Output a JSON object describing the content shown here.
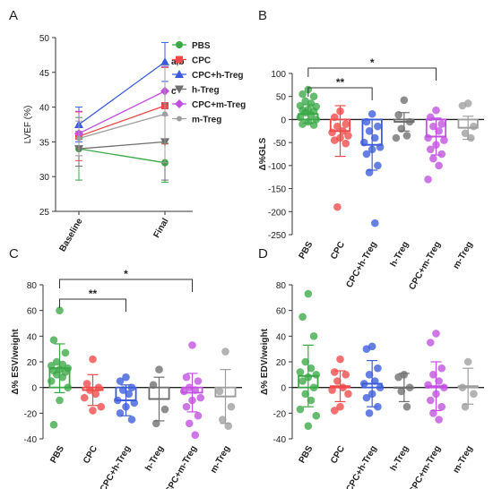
{
  "colors": {
    "PBS": "#3aa845",
    "CPC": "#f04848",
    "CPC+h-Treg": "#3b5bdb",
    "h-Treg": "#6e6e6e",
    "CPC+m-Treg": "#c14fe0",
    "m-Treg": "#9e9e9e"
  },
  "panels": {
    "A": {
      "letter": "A"
    },
    "B": {
      "letter": "B"
    },
    "C": {
      "letter": "C"
    },
    "D": {
      "letter": "D"
    }
  },
  "chart_data": [
    {
      "panel": "A",
      "type": "line",
      "categories": [
        "Baseline",
        "Final"
      ],
      "ylabel": "LVEF (%)",
      "ylim": [
        25,
        50
      ],
      "yticks": [
        25,
        30,
        35,
        40,
        45,
        50
      ],
      "legend_position": "top-right",
      "series": [
        {
          "name": "PBS",
          "values": [
            34.0,
            32.0
          ],
          "err": [
            4.5,
            2.8
          ],
          "marker": "circle"
        },
        {
          "name": "CPC",
          "values": [
            35.8,
            40.2
          ],
          "err": [
            3.5,
            5.5
          ],
          "marker": "square"
        },
        {
          "name": "CPC+h-Treg",
          "values": [
            37.5,
            46.5
          ],
          "err": [
            2.5,
            2.8
          ],
          "marker": "triangle-up"
        },
        {
          "name": "h-Treg",
          "values": [
            34.0,
            35.0
          ],
          "err": [
            2.5,
            5.5
          ],
          "marker": "triangle-down"
        },
        {
          "name": "CPC+m-Treg",
          "values": [
            36.2,
            42.3
          ],
          "err": [
            3.2,
            3.5
          ],
          "marker": "diamond"
        },
        {
          "name": "m-Treg",
          "values": [
            35.5,
            39.0
          ],
          "err": [
            2.5,
            7.0
          ],
          "marker": "circle-small"
        }
      ],
      "annotations": [
        {
          "text": "a,b",
          "series": "CPC+h-Treg",
          "category": "Final"
        },
        {
          "text": "c",
          "series": "CPC+m-Treg",
          "category": "Final"
        }
      ]
    },
    {
      "panel": "B",
      "type": "bar",
      "ylabel": "Δ%GLS",
      "ylim": [
        -250,
        100
      ],
      "yticks": [
        -250,
        -200,
        -150,
        -100,
        -50,
        0,
        50,
        100
      ],
      "categories": [
        "PBS",
        "CPC",
        "CPC+h-Treg",
        "h-Treg",
        "CPC+m-Treg",
        "m-Treg"
      ],
      "means": [
        12,
        -25,
        -55,
        -5,
        -37,
        -18
      ],
      "sd": [
        20,
        55,
        55,
        20,
        40,
        25
      ],
      "points": [
        [
          65,
          55,
          50,
          40,
          35,
          30,
          28,
          22,
          20,
          18,
          15,
          10,
          5,
          0,
          -5,
          -10,
          -12
        ],
        [
          18,
          5,
          -10,
          -15,
          -25,
          -28,
          -35,
          -40,
          -45,
          -52,
          -190
        ],
        [
          12,
          -5,
          -15,
          -25,
          -40,
          -50,
          -60,
          -65,
          -75,
          -100,
          -115,
          -225
        ],
        [
          42,
          10,
          -5,
          -20,
          -35,
          -40
        ],
        [
          20,
          5,
          -10,
          -15,
          -25,
          -40,
          -45,
          -55,
          -65,
          -75,
          -85,
          -100,
          -130
        ],
        [
          35,
          30,
          -15,
          -30,
          -40
        ]
      ],
      "significance": [
        {
          "from": "PBS",
          "to": "CPC+h-Treg",
          "label": "**"
        },
        {
          "from": "PBS",
          "to": "CPC+m-Treg",
          "label": "*"
        }
      ]
    },
    {
      "panel": "C",
      "type": "bar",
      "ylabel": "Δ% ESV/weight",
      "ylim": [
        -40,
        80
      ],
      "yticks": [
        -40,
        -20,
        0,
        20,
        40,
        60,
        80
      ],
      "categories": [
        "PBS",
        "CPC",
        "CPC+h-Treg",
        "h-Treg",
        "CPC+m-Treg",
        "m-Treg"
      ],
      "means": [
        15,
        -2,
        -10,
        -9,
        -4,
        -7
      ],
      "sd": [
        19,
        12,
        12,
        17,
        15,
        21
      ],
      "points": [
        [
          60,
          37,
          27,
          20,
          18,
          17,
          15,
          14,
          13,
          12,
          10,
          8,
          5,
          0,
          -10,
          -29
        ],
        [
          22,
          3,
          0,
          -2,
          -5,
          -8,
          -15,
          -18
        ],
        [
          8,
          5,
          0,
          -2,
          -5,
          -10,
          -12,
          -15,
          -20,
          -25
        ],
        [
          14,
          2,
          -17,
          -28
        ],
        [
          33,
          8,
          5,
          0,
          -2,
          -3,
          -8,
          -10,
          -15,
          -22,
          -28,
          -37
        ],
        [
          28,
          -3,
          -15,
          -25,
          -30
        ]
      ],
      "significance": [
        {
          "from": "PBS",
          "to": "CPC+h-Treg",
          "label": "**"
        },
        {
          "from": "PBS",
          "to": "CPC+m-Treg",
          "label": "*"
        }
      ]
    },
    {
      "panel": "D",
      "type": "bar",
      "ylabel": "Δ% EDV/weight",
      "ylim": [
        -40,
        80
      ],
      "yticks": [
        -40,
        -20,
        0,
        20,
        40,
        60,
        80
      ],
      "categories": [
        "PBS",
        "CPC",
        "CPC+h-Treg",
        "h-Treg",
        "CPC+m-Treg",
        "m-Treg"
      ],
      "means": [
        9,
        1,
        3,
        0,
        1,
        1
      ],
      "sd": [
        24,
        12,
        18,
        11,
        19,
        14
      ],
      "points": [
        [
          73,
          55,
          40,
          20,
          15,
          12,
          10,
          8,
          5,
          0,
          -5,
          -10,
          -17,
          -22,
          -30
        ],
        [
          22,
          12,
          10,
          5,
          0,
          -2,
          -5,
          -15,
          -18
        ],
        [
          32,
          30,
          15,
          10,
          5,
          3,
          0,
          -5,
          -8,
          -15,
          -20
        ],
        [
          10,
          8,
          0,
          -3,
          -15
        ],
        [
          42,
          35,
          15,
          10,
          5,
          2,
          0,
          -5,
          -10,
          -15,
          -20,
          -25
        ],
        [
          20,
          0,
          -5,
          -15
        ]
      ],
      "significance": []
    }
  ]
}
